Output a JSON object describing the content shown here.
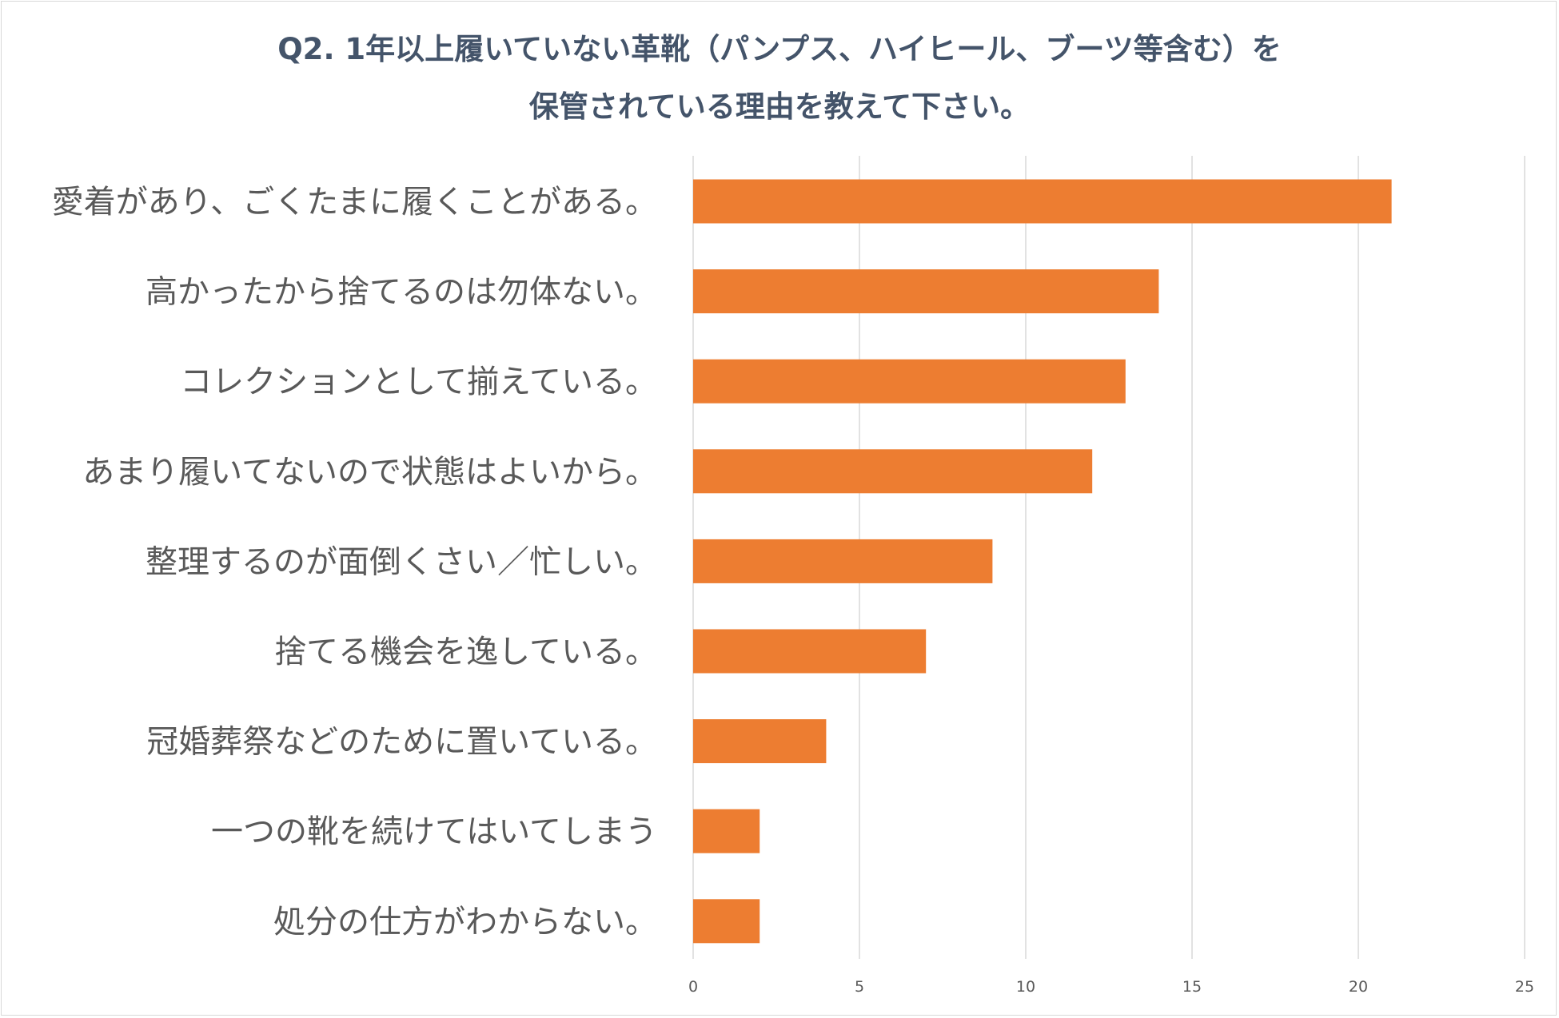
{
  "chart_data": {
    "type": "bar",
    "orientation": "horizontal",
    "title": [
      "Q2. 1年以上履いていない革靴（パンプス、ハイヒール、ブーツ等含む）を",
      "保管されている理由を教えて下さい。"
    ],
    "categories": [
      "愛着があり、ごくたまに履くことがある。",
      "高かったから捨てるのは勿体ない。",
      "コレクションとして揃えている。",
      "あまり履いてないので状態はよいから。",
      "整理するのが面倒くさい／忙しい。",
      "捨てる機会を逸している。",
      "冠婚葬祭などのために置いている。",
      "一つの靴を続けてはいてしまう",
      "処分の仕方がわからない。"
    ],
    "values": [
      21,
      14,
      13,
      12,
      9,
      7,
      4,
      2,
      2
    ],
    "xlim": [
      0,
      25
    ],
    "xticks": [
      0,
      5,
      10,
      15,
      20,
      25
    ],
    "grid": true,
    "bar_color": "#ed7d31",
    "grid_color": "#d9d9d9",
    "xlabel": "",
    "ylabel": ""
  }
}
